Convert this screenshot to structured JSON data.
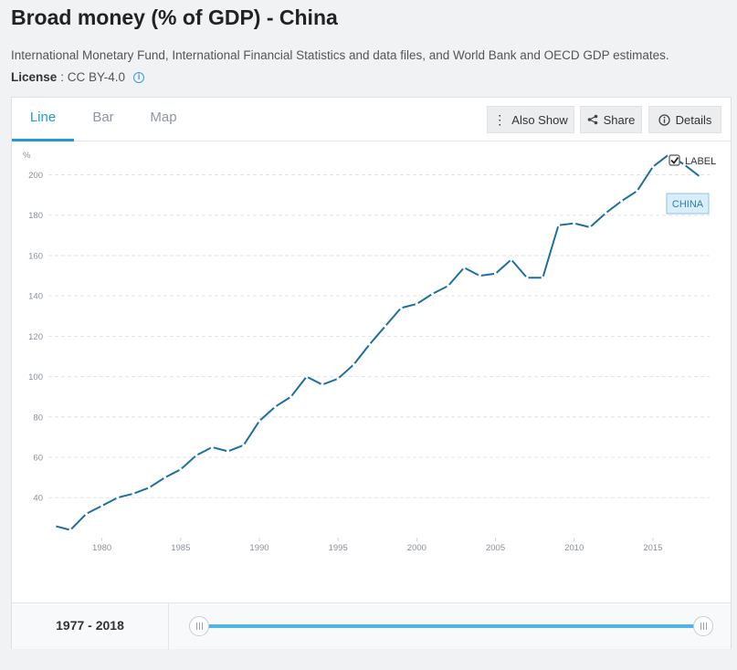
{
  "page": {
    "title": "Broad money (% of GDP) - China",
    "source": "International Monetary Fund, International Financial Statistics and data files, and World Bank and OECD GDP estimates.",
    "license_label": "License",
    "license_value": ": CC BY-4.0"
  },
  "tabs": [
    {
      "label": "Line",
      "active": true
    },
    {
      "label": "Bar",
      "active": false
    },
    {
      "label": "Map",
      "active": false
    }
  ],
  "toolbar": {
    "also_show": "Also Show",
    "share": "Share",
    "details": "Details"
  },
  "legend": {
    "label_toggle": "LABEL",
    "label_checked": true,
    "series_tag": "CHINA"
  },
  "range": {
    "label": "1977 - 2018",
    "start": 1977,
    "end": 2018
  },
  "colors": {
    "series": "#1d6fa0",
    "accent": "#1f9ad6",
    "slider": "#4fb5e6"
  },
  "chart_data": {
    "type": "line",
    "title": "",
    "xlabel": "",
    "ylabel": "%",
    "xlim": [
      1976.6,
      2018.6
    ],
    "ylim": [
      22,
      212
    ],
    "y_ticks": [
      40,
      60,
      80,
      100,
      120,
      140,
      160,
      180,
      200
    ],
    "x_ticks": [
      1980,
      1985,
      1990,
      1995,
      2000,
      2005,
      2010,
      2015
    ],
    "grid": true,
    "series": [
      {
        "name": "CHINA",
        "x": [
          1977,
          1978,
          1979,
          1980,
          1981,
          1982,
          1983,
          1984,
          1985,
          1986,
          1987,
          1988,
          1989,
          1990,
          1991,
          1992,
          1993,
          1994,
          1995,
          1996,
          1997,
          1998,
          1999,
          2000,
          2001,
          2002,
          2003,
          2004,
          2005,
          2006,
          2007,
          2008,
          2009,
          2010,
          2011,
          2012,
          2013,
          2014,
          2015,
          2016,
          2017,
          2018
        ],
        "values": [
          26,
          24,
          32,
          36,
          40,
          42,
          45,
          50,
          54,
          61,
          65,
          63,
          66,
          78,
          85,
          90,
          100,
          96,
          99,
          106,
          116,
          125,
          134,
          136,
          141,
          145,
          154,
          150,
          151,
          158,
          149,
          149,
          175,
          176,
          174,
          181,
          187,
          192,
          204,
          210,
          205,
          199
        ]
      }
    ]
  }
}
